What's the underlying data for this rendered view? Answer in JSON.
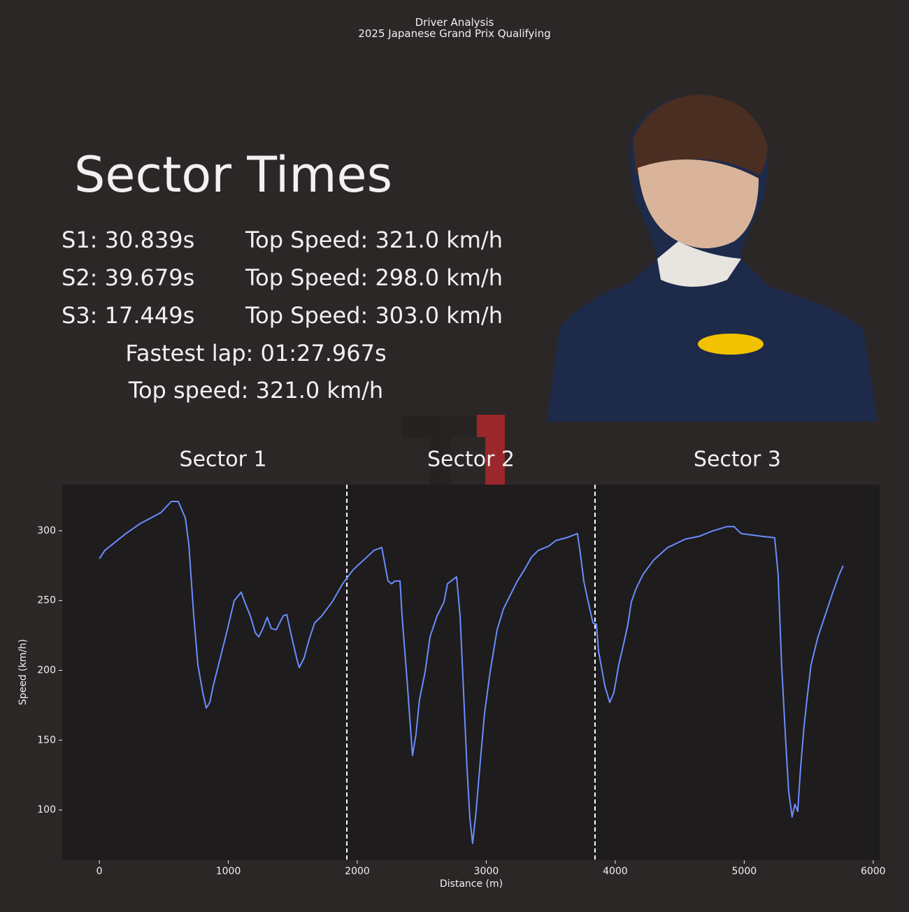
{
  "header": {
    "title": "Driver Analysis",
    "subtitle": "2025 Japanese Grand Prix Qualifying"
  },
  "sector_times": {
    "heading": "Sector Times",
    "rows": [
      [
        "S1: 30.839s",
        "Top Speed: 321.0 km/h"
      ],
      [
        "S2: 39.679s",
        "Top Speed: 298.0 km/h"
      ],
      [
        "S3: 17.449s",
        "Top Speed: 303.0 km/h"
      ]
    ],
    "fastest_lap": "Fastest lap: 01:27.967s",
    "top_speed": "Top speed: 321.0 km/h"
  },
  "chart_data": {
    "type": "line",
    "sector_labels": [
      "Sector 1",
      "Sector 2",
      "Sector 3"
    ],
    "sector_boundaries": [
      1919,
      3843
    ],
    "x_label": "Distance (m)",
    "y_label": "Speed (km/h)",
    "color": "#6b8cff",
    "x": [
      0,
      43,
      125,
      206,
      314,
      396,
      477,
      558,
      612,
      667,
      694,
      732,
      764,
      802,
      829,
      856,
      883,
      938,
      992,
      1046,
      1100,
      1127,
      1171,
      1209,
      1236,
      1263,
      1301,
      1333,
      1371,
      1425,
      1453,
      1496,
      1534,
      1550,
      1588,
      1626,
      1669,
      1724,
      1805,
      1886,
      1967,
      2049,
      2130,
      2190,
      2238,
      2266,
      2293,
      2331,
      2347,
      2385,
      2412,
      2428,
      2455,
      2482,
      2526,
      2564,
      2618,
      2672,
      2699,
      2770,
      2797,
      2824,
      2851,
      2873,
      2894,
      2921,
      2948,
      2986,
      3030,
      3084,
      3133,
      3187,
      3241,
      3295,
      3350,
      3404,
      3485,
      3539,
      3621,
      3707,
      3729,
      3756,
      3783,
      3827,
      3854,
      3870,
      3919,
      3957,
      3989,
      4027,
      4065,
      4098,
      4125,
      4163,
      4217,
      4298,
      4407,
      4542,
      4650,
      4759,
      4867,
      4921,
      4976,
      5057,
      5138,
      5236,
      5263,
      5290,
      5322,
      5344,
      5371,
      5393,
      5415,
      5436,
      5463,
      5490,
      5518,
      5572,
      5626,
      5680,
      5734,
      5767
    ],
    "values": [
      280,
      286,
      292,
      298,
      305,
      309,
      313,
      321,
      321,
      309,
      290,
      239,
      204,
      184,
      173,
      177,
      189,
      209,
      229,
      250,
      256,
      249,
      239,
      227,
      224,
      229,
      238,
      230,
      229,
      239,
      240,
      222,
      207,
      202,
      209,
      222,
      234,
      239,
      249,
      262,
      272,
      279,
      286,
      288,
      264,
      262,
      264,
      264,
      239,
      194,
      159,
      139,
      154,
      179,
      199,
      224,
      239,
      249,
      262,
      267,
      239,
      184,
      129,
      94,
      76,
      99,
      129,
      169,
      199,
      229,
      244,
      254,
      264,
      272,
      281,
      286,
      289,
      293,
      295,
      298,
      284,
      264,
      252,
      234,
      233,
      214,
      189,
      177,
      184,
      204,
      219,
      233,
      249,
      259,
      269,
      279,
      288,
      294,
      296,
      300,
      303,
      303,
      298,
      297,
      296,
      295,
      269,
      204,
      149,
      114,
      95,
      104,
      99,
      129,
      159,
      182,
      204,
      224,
      239,
      254,
      268,
      275
    ],
    "xlim": [
      -288,
      6050
    ],
    "ylim": [
      64,
      333
    ],
    "xticks": [
      0,
      1000,
      2000,
      3000,
      4000,
      5000,
      6000
    ],
    "yticks": [
      100,
      150,
      200,
      250,
      300
    ]
  }
}
